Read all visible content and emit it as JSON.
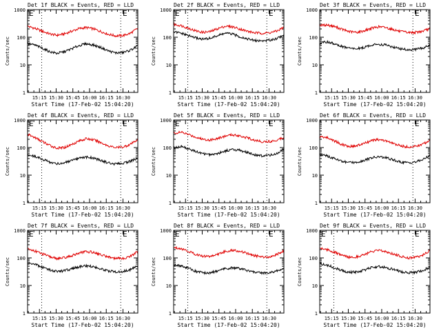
{
  "colors": {
    "events": "#000000",
    "lld": "#e00000",
    "frame": "#000000",
    "background": "#ffffff"
  },
  "chart_data": [
    {
      "type": "line",
      "title": "Det 1f BLACK = Events, RED = LLD",
      "xlabel": "Start Time (17-Feb-02 15:04:20)",
      "ylabel": "Counts/sec",
      "xticks": [
        "15:15",
        "15:30",
        "15:45",
        "16:00",
        "16:15",
        "16:30"
      ],
      "yticks": [
        "1",
        "10",
        "100",
        "1000"
      ],
      "yscale": "log",
      "ylim": [
        1,
        1000
      ],
      "xlim": [
        "15:04:20",
        "16:43:20"
      ],
      "dashed_x": [
        "15:17",
        "16:28"
      ],
      "e_marks": 2,
      "series": [
        {
          "color": "#e00000",
          "values": [
            250,
            210,
            165,
            132,
            118,
            132,
            165,
            205,
            225,
            200,
            160,
            128,
            112,
            115,
            140,
            210
          ]
        },
        {
          "color": "#000000",
          "values": [
            58,
            52,
            40,
            30,
            26,
            30,
            38,
            50,
            58,
            52,
            42,
            32,
            27,
            28,
            34,
            48
          ]
        }
      ]
    },
    {
      "type": "line",
      "title": "Det 2f BLACK = Events, RED = LLD",
      "xlabel": "Start Time (17-Feb-02 15:04:20)",
      "ylabel": "Counts/sec",
      "xticks": [
        "15:15",
        "15:30",
        "15:45",
        "16:00",
        "16:15",
        "16:30"
      ],
      "yticks": [
        "1",
        "10",
        "100",
        "1000"
      ],
      "yscale": "log",
      "ylim": [
        1,
        1000
      ],
      "xlim": [
        "15:04:20",
        "16:43:20"
      ],
      "dashed_x": [
        "15:17",
        "16:28"
      ],
      "e_marks": 2,
      "series": [
        {
          "color": "#e00000",
          "values": [
            290,
            265,
            215,
            170,
            150,
            160,
            205,
            250,
            240,
            200,
            165,
            145,
            140,
            145,
            165,
            230
          ]
        },
        {
          "color": "#000000",
          "values": [
            155,
            140,
            115,
            95,
            85,
            92,
            115,
            140,
            130,
            105,
            88,
            76,
            74,
            78,
            90,
            120
          ]
        }
      ]
    },
    {
      "type": "line",
      "title": "Det 3f BLACK = Events, RED = LLD",
      "xlabel": "Start Time (17-Feb-02 15:04:20)",
      "ylabel": "Counts/sec",
      "xticks": [
        "15:15",
        "15:30",
        "15:45",
        "16:00",
        "16:15",
        "16:30"
      ],
      "yticks": [
        "1",
        "10",
        "100",
        "1000"
      ],
      "yscale": "log",
      "ylim": [
        1,
        1000
      ],
      "xlim": [
        "15:04:20",
        "16:43:20"
      ],
      "dashed_x": [
        "16:28"
      ],
      "e_marks": 1,
      "series": [
        {
          "color": "#e00000",
          "values": [
            270,
            280,
            245,
            195,
            160,
            150,
            170,
            210,
            240,
            225,
            190,
            160,
            148,
            150,
            165,
            205
          ]
        },
        {
          "color": "#000000",
          "values": [
            60,
            68,
            58,
            46,
            40,
            38,
            42,
            52,
            56,
            52,
            44,
            38,
            35,
            36,
            40,
            52
          ]
        }
      ]
    },
    {
      "type": "line",
      "title": "Det 4f BLACK = Events, RED = LLD",
      "xlabel": "Start Time (17-Feb-02 15:04:20)",
      "ylabel": "Counts/sec",
      "xticks": [
        "15:15",
        "15:30",
        "15:45",
        "16:00",
        "16:15",
        "16:30"
      ],
      "yticks": [
        "1",
        "10",
        "100",
        "1000"
      ],
      "yscale": "log",
      "ylim": [
        1,
        1000
      ],
      "xlim": [
        "15:04:20",
        "16:43:20"
      ],
      "dashed_x": [
        "15:17",
        "16:28"
      ],
      "e_marks": 2,
      "series": [
        {
          "color": "#e00000",
          "values": [
            300,
            230,
            165,
            120,
            95,
            100,
            130,
            175,
            210,
            190,
            150,
            115,
            100,
            105,
            130,
            200
          ]
        },
        {
          "color": "#000000",
          "values": [
            55,
            48,
            38,
            30,
            26,
            28,
            33,
            40,
            45,
            42,
            34,
            28,
            25,
            27,
            32,
            42
          ]
        }
      ]
    },
    {
      "type": "line",
      "title": "Det 5f BLACK = Events, RED = LLD",
      "xlabel": "Start Time (17-Feb-02 15:04:20)",
      "ylabel": "Counts/sec",
      "xticks": [
        "15:15",
        "15:30",
        "15:45",
        "16:00",
        "16:15",
        "16:30"
      ],
      "yticks": [
        "1",
        "10",
        "100",
        "1000"
      ],
      "yscale": "log",
      "ylim": [
        1,
        1000
      ],
      "xlim": [
        "15:04:20",
        "16:43:20"
      ],
      "dashed_x": [
        "15:17",
        "16:28"
      ],
      "e_marks": 2,
      "series": [
        {
          "color": "#e00000",
          "values": [
            330,
            360,
            300,
            240,
            200,
            190,
            215,
            260,
            290,
            270,
            225,
            185,
            165,
            165,
            185,
            240
          ]
        },
        {
          "color": "#000000",
          "values": [
            95,
            110,
            90,
            72,
            60,
            55,
            62,
            75,
            85,
            80,
            66,
            55,
            50,
            52,
            60,
            88
          ]
        }
      ]
    },
    {
      "type": "line",
      "title": "Det 6f BLACK = Events, RED = LLD",
      "xlabel": "Start Time (17-Feb-02 15:04:20)",
      "ylabel": "Counts/sec",
      "xticks": [
        "15:15",
        "15:30",
        "15:45",
        "16:00",
        "16:15",
        "16:30"
      ],
      "yticks": [
        "1",
        "10",
        "100",
        "1000"
      ],
      "yscale": "log",
      "ylim": [
        1,
        1000
      ],
      "xlim": [
        "15:04:20",
        "16:43:20"
      ],
      "dashed_x": [
        "16:28"
      ],
      "e_marks": 1,
      "series": [
        {
          "color": "#e00000",
          "values": [
            250,
            230,
            175,
            130,
            110,
            115,
            140,
            175,
            195,
            175,
            140,
            115,
            105,
            110,
            130,
            190
          ]
        },
        {
          "color": "#000000",
          "values": [
            55,
            50,
            40,
            32,
            28,
            30,
            34,
            42,
            46,
            43,
            36,
            30,
            28,
            30,
            36,
            52
          ]
        }
      ]
    },
    {
      "type": "line",
      "title": "Det 7f BLACK = Events, RED = LLD",
      "xlabel": "Start Time (17-Feb-02 15:04:20)",
      "ylabel": "Counts/sec",
      "xticks": [
        "15:15",
        "15:30",
        "15:45",
        "16:00",
        "16:15",
        "16:30"
      ],
      "yticks": [
        "1",
        "10",
        "100",
        "1000"
      ],
      "yscale": "log",
      "ylim": [
        1,
        1000
      ],
      "xlim": [
        "15:04:20",
        "16:43:20"
      ],
      "dashed_x": [
        "15:17",
        "16:28"
      ],
      "e_marks": 2,
      "series": [
        {
          "color": "#e00000",
          "values": [
            210,
            180,
            140,
            110,
            95,
            100,
            120,
            150,
            170,
            160,
            130,
            110,
            95,
            95,
            115,
            170
          ]
        },
        {
          "color": "#000000",
          "values": [
            65,
            58,
            46,
            37,
            32,
            34,
            40,
            48,
            52,
            48,
            40,
            34,
            31,
            32,
            38,
            50
          ]
        }
      ]
    },
    {
      "type": "line",
      "title": "Det 8f BLACK = Events, RED = LLD",
      "xlabel": "Start Time (17-Feb-02 15:04:20)",
      "ylabel": "Counts/sec",
      "xticks": [
        "15:15",
        "15:30",
        "15:45",
        "16:00",
        "16:15",
        "16:30"
      ],
      "yticks": [
        "1",
        "10",
        "100",
        "1000"
      ],
      "yscale": "log",
      "ylim": [
        1,
        1000
      ],
      "xlim": [
        "15:04:20",
        "16:43:20"
      ],
      "dashed_x": [
        "15:17",
        "16:28"
      ],
      "e_marks": 2,
      "series": [
        {
          "color": "#e00000",
          "values": [
            240,
            220,
            175,
            135,
            115,
            115,
            135,
            170,
            190,
            175,
            145,
            120,
            110,
            110,
            130,
            185
          ]
        },
        {
          "color": "#000000",
          "values": [
            58,
            52,
            42,
            33,
            28,
            29,
            34,
            40,
            44,
            41,
            35,
            30,
            28,
            29,
            33,
            42
          ]
        }
      ]
    },
    {
      "type": "line",
      "title": "Det 9f BLACK = Events, RED = LLD",
      "xlabel": "Start Time (17-Feb-02 15:04:20)",
      "ylabel": "Counts/sec",
      "xticks": [
        "15:15",
        "15:30",
        "15:45",
        "16:00",
        "16:15",
        "16:30"
      ],
      "yticks": [
        "1",
        "10",
        "100",
        "1000"
      ],
      "yscale": "log",
      "ylim": [
        1,
        1000
      ],
      "xlim": [
        "15:04:20",
        "16:43:20"
      ],
      "dashed_x": [
        "15:17",
        "16:28"
      ],
      "e_marks": 2,
      "series": [
        {
          "color": "#e00000",
          "values": [
            230,
            200,
            160,
            125,
            105,
            110,
            130,
            165,
            185,
            170,
            140,
            115,
            100,
            105,
            125,
            180
          ]
        },
        {
          "color": "#000000",
          "values": [
            62,
            55,
            44,
            35,
            30,
            31,
            36,
            44,
            48,
            45,
            38,
            32,
            29,
            30,
            35,
            46
          ]
        }
      ]
    }
  ]
}
